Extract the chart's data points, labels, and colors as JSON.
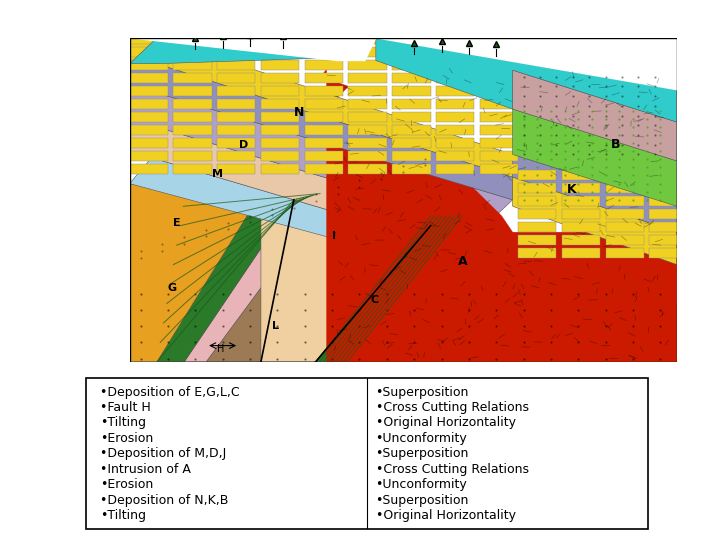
{
  "left_column": [
    "•Deposition of E,G,L,C",
    "•Fault H",
    "•Tilting",
    "•Erosion",
    "•Deposition of M,D,J",
    "•Intrusion of A",
    "•Erosion",
    "•Deposition of N,K,B",
    "•Tilting"
  ],
  "right_column": [
    "•Superposition",
    "•Cross Cutting Relations",
    "•Original Horizontality",
    "•Unconformity",
    "•Superposition",
    "•Cross Cutting Relations",
    "•Unconformity",
    "•Superposition",
    "•Original Horizontality"
  ],
  "bg_color": "#ffffff",
  "text_color": "#000000",
  "font_size": 9.0,
  "fig_width": 7.2,
  "fig_height": 5.4
}
